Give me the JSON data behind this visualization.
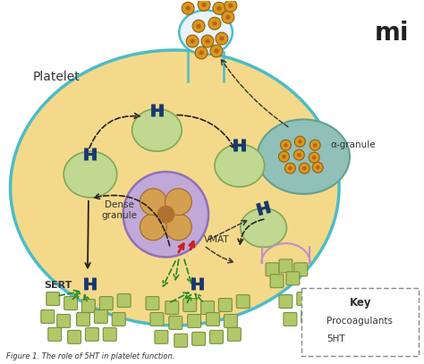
{
  "background_color": "#ffffff",
  "fig_width": 4.74,
  "fig_height": 4.07,
  "platelet_color": "#f5d98a",
  "platelet_border_color": "#4bbcc8",
  "dense_granule_color": "#c0a8d8",
  "dense_granule_border": "#9070b8",
  "alpha_granule_color": "#90c0b8",
  "alpha_granule_border": "#60a090",
  "vesicle_color": "#c0d890",
  "vesicle_border": "#80a858",
  "fuse_vesicle_color": "#e8f4f8",
  "fuse_vesicle_border": "#4bbcc8",
  "exo_vesicle_border": "#c090c8",
  "sert_color": "#1a3870",
  "ht5_color": "#b0c868",
  "ht5_border": "#789040",
  "procoag_outer": "#d89820",
  "procoag_inner": "#c06010",
  "arrow_color": "#222222",
  "green_arrow_color": "#228822",
  "red_arrow_color": "#cc2020",
  "text_platelet": "Platelet",
  "text_dense_granule": "Dense\ngranule",
  "text_vmat": "VMAT",
  "text_sert": "SERT",
  "text_alpha_granule": "α-granule",
  "text_key": "Key",
  "text_procoag": "Procoagulants",
  "text_5ht": "5HT",
  "caption": "Figure 1. The role of 5HT in platelet function."
}
